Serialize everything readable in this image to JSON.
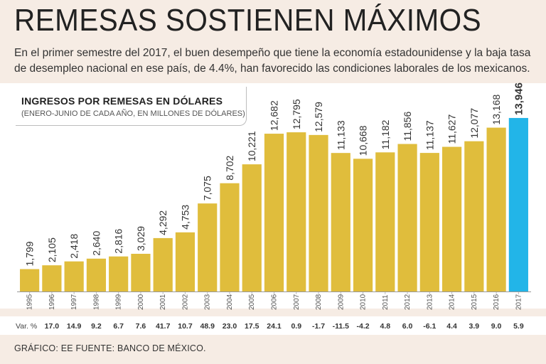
{
  "header": {
    "title": "REMESAS SOSTIENEN MÁXIMOS",
    "subtitle": "En el primer semestre del 2017, el buen desempeño que tiene la economía estadounidense y la baja tasa de desempleo nacional en ese país, de 4.4%, han favorecido las condiciones laborales de los mexicanos."
  },
  "footer": {
    "source": "GRÁFICO: EE  FUENTE: BANCO DE MÉXICO."
  },
  "colors": {
    "bar": "#e0bd3c",
    "highlight": "#22b5e8",
    "background": "#f6ece4"
  },
  "chart_data": {
    "type": "bar",
    "title": "INGRESOS POR REMESAS EN DÓLARES",
    "subtitle": "(ENERO-JUNIO DE CADA AÑO, EN MILLONES DE DÓLARES)",
    "categories": [
      "1995",
      "1996",
      "1997",
      "1998",
      "1999",
      "2000",
      "2001",
      "2002",
      "2003",
      "2004",
      "2005",
      "2006",
      "2007",
      "2008",
      "2009",
      "2010",
      "2011",
      "2012",
      "2013",
      "2014",
      "2015",
      "2016",
      "2017"
    ],
    "values": [
      1799,
      2105,
      2418,
      2640,
      2816,
      3029,
      4292,
      4753,
      7075,
      8702,
      10221,
      12682,
      12795,
      12579,
      11133,
      10668,
      11182,
      11856,
      11137,
      11627,
      12077,
      13168,
      13946
    ],
    "value_labels": [
      "1,799",
      "2,105",
      "2,418",
      "2,640",
      "2,816",
      "3,029",
      "4,292",
      "4,753",
      "7,075",
      "8,702",
      "10,221",
      "12,682",
      "12,795",
      "12,579",
      "11,133",
      "10,668",
      "11,182",
      "11,856",
      "11,137",
      "11,627",
      "12,077",
      "13,168",
      "13,946"
    ],
    "var_label": "Var. %",
    "var_pct": [
      "",
      "17.0",
      "14.9",
      "9.2",
      "6.7",
      "7.6",
      "41.7",
      "10.7",
      "48.9",
      "23.0",
      "17.5",
      "24.1",
      "0.9",
      "-1.7",
      "-11.5",
      "-4.2",
      "4.8",
      "6.0",
      "-6.1",
      "4.4",
      "3.9",
      "9.0",
      "5.9"
    ],
    "highlight_index": 22,
    "ylim": [
      0,
      16000
    ]
  }
}
